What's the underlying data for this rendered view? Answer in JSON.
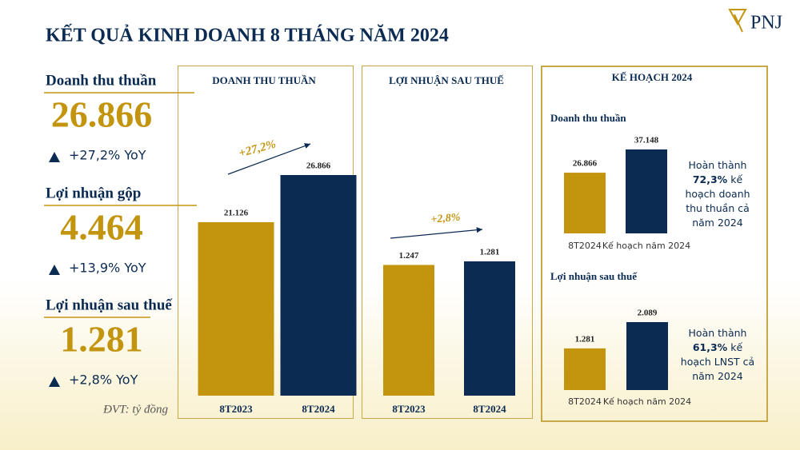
{
  "header": {
    "title": "KẾT QUẢ KINH DOANH 8 THÁNG NĂM 2024",
    "logo": "PNJ"
  },
  "kpis": [
    {
      "label": "Doanh thu thuần",
      "value": "26.866",
      "change": "+27,2% YoY"
    },
    {
      "label": "Lợi nhuận gộp",
      "value": "4.464",
      "change": "+13,9% YoY"
    },
    {
      "label": "Lợi nhuận sau thuế",
      "value": "1.281",
      "change": "+2,8% YoY"
    }
  ],
  "unit_note": "ĐVT: tỷ đồng",
  "plan_panel": {
    "title": "KẾ HOẠCH 2024"
  },
  "chart_data": [
    {
      "type": "bar",
      "title": "DOANH THU THUẦN",
      "categories": [
        "8T2023",
        "8T2024"
      ],
      "values": [
        21126,
        26866
      ],
      "value_labels": [
        "21.126",
        "26.866"
      ],
      "colors": [
        "#c3950f",
        "#0b2b52"
      ],
      "annotation": "+27,2%"
    },
    {
      "type": "bar",
      "title": "LỢI NHUẬN SAU THUẾ",
      "categories": [
        "8T2023",
        "8T2024"
      ],
      "values": [
        1247,
        1281
      ],
      "value_labels": [
        "1.247",
        "1.281"
      ],
      "colors": [
        "#c3950f",
        "#0b2b52"
      ],
      "annotation": "+2,8%"
    },
    {
      "type": "bar",
      "title": "Doanh thu thuần",
      "categories": [
        "8T2024",
        "Kế hoạch năm 2024"
      ],
      "values": [
        26866,
        37148
      ],
      "value_labels": [
        "26.866",
        "37.148"
      ],
      "colors": [
        "#c3950f",
        "#0b2b52"
      ],
      "note": [
        "Hoàn thành",
        "72,3%",
        "kế hoạch doanh thu thuần cả năm 2024"
      ]
    },
    {
      "type": "bar",
      "title": "Lợi nhuận sau thuế",
      "categories": [
        "8T2024",
        "Kế hoạch năm 2024"
      ],
      "values": [
        1281,
        2089
      ],
      "value_labels": [
        "1.281",
        "2.089"
      ],
      "colors": [
        "#c3950f",
        "#0b2b52"
      ],
      "note": [
        "Hoàn thành",
        "61,3%",
        "kế hoạch LNST cả năm 2024"
      ]
    }
  ]
}
